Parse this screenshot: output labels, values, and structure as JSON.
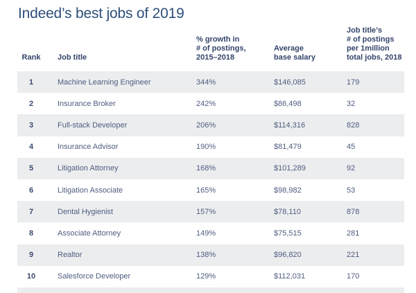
{
  "title": "Indeed’s best jobs of 2019",
  "headers_display": {
    "rank": "Rank",
    "job_title": "Job title",
    "growth": "% growth in\n# of postings,\n2015–2018",
    "salary": "Average\nbase salary",
    "postings": "Job title’s\n# of postings\nper 1million\ntotal jobs, 2018"
  },
  "colors": {
    "title_text": "#2d4e79",
    "header_text": "#33436a",
    "body_text": "#4e5c7e",
    "rank_text": "#3a4a6e",
    "row_stripe": "#ecedef",
    "background": "#ffffff"
  },
  "chart_data": {
    "type": "table",
    "title": "Indeed’s best jobs of 2019",
    "columns": [
      "Rank",
      "Job title",
      "% growth in # of postings, 2015–2018",
      "Average base salary",
      "Job title’s # of postings per 1million total jobs, 2018"
    ],
    "rows": [
      [
        "1",
        "Machine Learning Engineer",
        "344%",
        "$146,085",
        "179"
      ],
      [
        "2",
        "Insurance Broker",
        "242%",
        "$86,498",
        "32"
      ],
      [
        "3",
        "Full-stack Developer",
        "206%",
        "$114,316",
        "828"
      ],
      [
        "4",
        "Insurance Advisor",
        "190%",
        "$81,479",
        "45"
      ],
      [
        "5",
        "Litigation Attorney",
        "168%",
        "$101,289",
        "92"
      ],
      [
        "6",
        "Litigation Associate",
        "165%",
        "$98,982",
        "53"
      ],
      [
        "7",
        "Dental Hygienist",
        "157%",
        "$78,110",
        "878"
      ],
      [
        "8",
        "Associate Attorney",
        "149%",
        "$75,515",
        "281"
      ],
      [
        "9",
        "Realtor",
        "138%",
        "$96,820",
        "221"
      ],
      [
        "10",
        "Salesforce Developer",
        "129%",
        "$112,031",
        "170"
      ]
    ]
  }
}
